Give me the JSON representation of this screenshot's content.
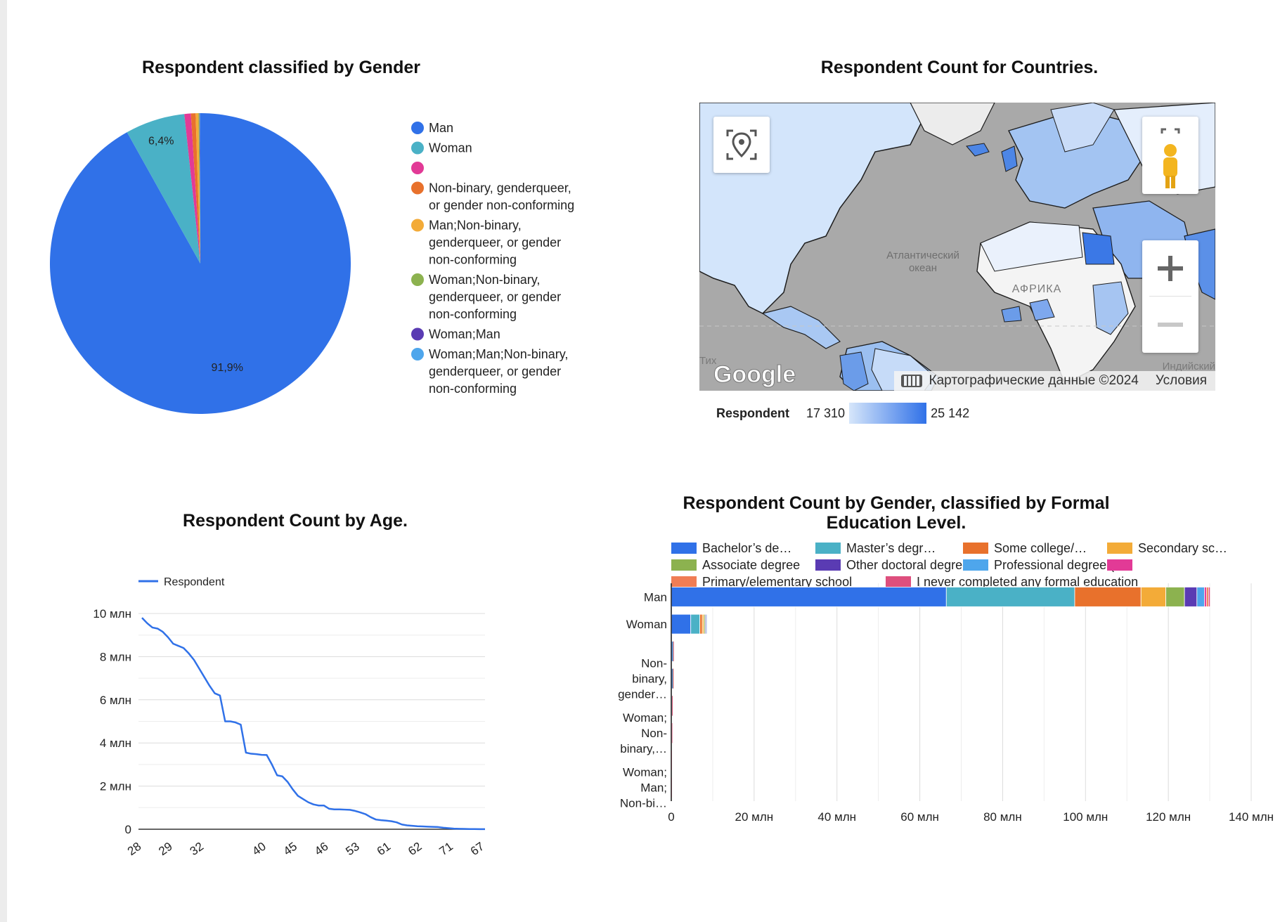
{
  "colors": {
    "man": "#3071e8",
    "woman": "#4ab1c6",
    "pink": "#e23a96",
    "orange": "#e8712c",
    "yellow": "#f3ab38",
    "green": "#8cb24f",
    "purple": "#5a3bb3",
    "lightblue": "#4ea6ec",
    "salmon": "#f07d55",
    "rose": "#de4f7d"
  },
  "chart_data": [
    {
      "type": "pie",
      "title": "Respondent classified by Gender",
      "slices": [
        {
          "label": "Man",
          "value": 91.9,
          "display": "91,9%",
          "color": "#3071e8"
        },
        {
          "label": "Woman",
          "value": 6.4,
          "display": "6,4%",
          "color": "#4ab1c6"
        },
        {
          "label": "",
          "value": 0.7,
          "display": "",
          "color": "#e23a96"
        },
        {
          "label": "Non-binary, genderqueer, or gender non-conforming",
          "value": 0.5,
          "display": "",
          "color": "#e8712c"
        },
        {
          "label": "Man;Non-binary, genderqueer, or gender non-conforming",
          "value": 0.3,
          "display": "",
          "color": "#f3ab38"
        },
        {
          "label": "Woman;Non-binary, genderqueer, or gender non-conforming",
          "value": 0.1,
          "display": "",
          "color": "#8cb24f"
        },
        {
          "label": "Woman;Man",
          "value": 0.05,
          "display": "",
          "color": "#5a3bb3"
        },
        {
          "label": "Woman;Man;Non-binary, genderqueer, or gender non-conforming",
          "value": 0.05,
          "display": "",
          "color": "#4ea6ec"
        }
      ],
      "legend": [
        {
          "lines": [
            "Man"
          ],
          "color": "#3071e8"
        },
        {
          "lines": [
            "Woman"
          ],
          "color": "#4ab1c6"
        },
        {
          "lines": [],
          "color": "#e23a96"
        },
        {
          "lines": [
            "Non-binary, genderqueer,",
            "or gender non-conforming"
          ],
          "color": "#e8712c"
        },
        {
          "lines": [
            "Man;Non-binary,",
            "genderqueer, or gender",
            "non-conforming"
          ],
          "color": "#f3ab38"
        },
        {
          "lines": [
            "Woman;Non-binary,",
            "genderqueer, or gender",
            "non-conforming"
          ],
          "color": "#8cb24f"
        },
        {
          "lines": [
            "Woman;Man"
          ],
          "color": "#5a3bb3"
        },
        {
          "lines": [
            "Woman;Man;Non-binary,",
            "genderqueer, or gender",
            "non-conforming"
          ],
          "color": "#4ea6ec"
        }
      ]
    },
    {
      "type": "map",
      "title": "Respondent Count for Countries.",
      "map_labels": {
        "ocean": [
          "Атлантический",
          "океан"
        ],
        "continent": "АФРИКА",
        "ocean2": "Индийский",
        "ocean3": "Тих"
      },
      "logo": "Google",
      "attribution": "Картографические данные ©2024",
      "terms": "Условия",
      "color_scale": {
        "label": "Respondent",
        "min": "17 310",
        "max": "25 142",
        "min_color": "#d6e6fa",
        "max_color": "#3071e8"
      }
    },
    {
      "type": "line",
      "title": "Respondent Count by Age.",
      "series_name": "Respondent",
      "ylim": [
        0,
        10000000
      ],
      "yticks": [
        {
          "v": 0,
          "label": "0"
        },
        {
          "v": 2000000,
          "label": "2 млн"
        },
        {
          "v": 4000000,
          "label": "4 млн"
        },
        {
          "v": 6000000,
          "label": "6 млн"
        },
        {
          "v": 8000000,
          "label": "8 млн"
        },
        {
          "v": 10000000,
          "label": "10 млн"
        }
      ],
      "xtick_labels": [
        "28",
        "29",
        "32",
        "40",
        "45",
        "46",
        "53",
        "61",
        "62",
        "71",
        "67"
      ],
      "xtick_positions": [
        0,
        6,
        12,
        24,
        30,
        36,
        42,
        48,
        54,
        60,
        66
      ],
      "x_count": 67,
      "values": [
        9800000,
        9550000,
        9350000,
        9300000,
        9150000,
        8900000,
        8600000,
        8500000,
        8400000,
        8150000,
        7850000,
        7450000,
        7050000,
        6650000,
        6300000,
        6200000,
        5000000,
        5000000,
        4950000,
        4850000,
        3550000,
        3500000,
        3480000,
        3450000,
        3440000,
        3000000,
        2500000,
        2450000,
        2200000,
        1850000,
        1550000,
        1400000,
        1250000,
        1150000,
        1100000,
        1100000,
        950000,
        920000,
        920000,
        910000,
        900000,
        850000,
        780000,
        700000,
        560000,
        450000,
        420000,
        400000,
        370000,
        320000,
        220000,
        180000,
        160000,
        140000,
        130000,
        120000,
        110000,
        100000,
        70000,
        50000,
        30000,
        20000,
        15000,
        10000,
        8000,
        5000,
        3000
      ]
    },
    {
      "type": "bar",
      "orientation": "horizontal-stacked",
      "title_lines": [
        "Respondent Count by Gender, classified by Formal",
        "Education Level."
      ],
      "xlim": [
        0,
        140000000
      ],
      "xticks": [
        {
          "v": 0,
          "label": "0"
        },
        {
          "v": 20000000,
          "label": "20 млн"
        },
        {
          "v": 40000000,
          "label": "40 млн"
        },
        {
          "v": 60000000,
          "label": "60 млн"
        },
        {
          "v": 80000000,
          "label": "80 млн"
        },
        {
          "v": 100000000,
          "label": "100 млн"
        },
        {
          "v": 120000000,
          "label": "120 млн"
        },
        {
          "v": 140000000,
          "label": "140 млн"
        }
      ],
      "legend_rows": [
        [
          {
            "label": "Bachelor’s de…",
            "color": "#3071e8"
          },
          {
            "label": "Master’s degr…",
            "color": "#4ab1c6"
          },
          {
            "label": "Some college/…",
            "color": "#e8712c"
          },
          {
            "label": "Secondary sc…",
            "color": "#f3ab38"
          }
        ],
        [
          {
            "label": "Associate degree",
            "color": "#8cb24f"
          },
          {
            "label": "Other doctoral degree…",
            "color": "#5a3bb3"
          },
          {
            "label": "Professional degree (…",
            "color": "#4ea6ec"
          },
          {
            "label": "",
            "color": "#e23a96"
          }
        ],
        [
          {
            "label": "Primary/elementary school",
            "color": "#f07d55"
          },
          {
            "label": "I never completed any formal education",
            "color": "#de4f7d"
          }
        ]
      ],
      "categories": [
        {
          "lines": [
            "Man"
          ]
        },
        {
          "lines": [
            "Woman"
          ]
        },
        {
          "lines": []
        },
        {
          "lines": [
            "Non-",
            "binary,",
            "gender…"
          ]
        },
        {
          "lines": []
        },
        {
          "lines": [
            "Woman;",
            "Non-",
            "binary,…"
          ]
        },
        {
          "lines": []
        },
        {
          "lines": [
            "Woman;",
            "Man;",
            "Non-bi…"
          ]
        }
      ],
      "series": [
        {
          "name": "Bachelor’s de…",
          "color": "#3071e8",
          "values": [
            66400000,
            4700000,
            300000,
            250000,
            120000,
            80000,
            20000,
            15000
          ]
        },
        {
          "name": "Master’s degr…",
          "color": "#4ab1c6",
          "values": [
            31000000,
            2200000,
            100000,
            90000,
            40000,
            30000,
            8000,
            5000
          ]
        },
        {
          "name": "Some college/…",
          "color": "#e8712c",
          "values": [
            16000000,
            600000,
            40000,
            40000,
            20000,
            15000,
            4000,
            3000
          ]
        },
        {
          "name": "Secondary sc…",
          "color": "#f3ab38",
          "values": [
            6000000,
            400000,
            25000,
            20000,
            10000,
            8000,
            3000,
            2000
          ]
        },
        {
          "name": "Associate degree",
          "color": "#8cb24f",
          "values": [
            4500000,
            300000,
            15000,
            10000,
            6000,
            4000,
            1000,
            1000
          ]
        },
        {
          "name": "Other doctoral degree…",
          "color": "#5a3bb3",
          "values": [
            3000000,
            250000,
            10000,
            10000,
            4000,
            3000,
            1000,
            1000
          ]
        },
        {
          "name": "Professional degree (…",
          "color": "#4ea6ec",
          "values": [
            1800000,
            200000,
            8000,
            6000,
            3000,
            2000,
            500,
            500
          ]
        },
        {
          "name": "",
          "color": "#e23a96",
          "values": [
            500000,
            60000,
            3000,
            2000,
            1000,
            800,
            200,
            200
          ]
        },
        {
          "name": "Primary/elementary school",
          "color": "#f07d55",
          "values": [
            500000,
            50000,
            3000,
            2000,
            1000,
            800,
            200,
            200
          ]
        },
        {
          "name": "I never completed any formal education",
          "color": "#de4f7d",
          "values": [
            400000,
            40000,
            2000,
            1500,
            800,
            600,
            200,
            200
          ]
        }
      ]
    }
  ]
}
